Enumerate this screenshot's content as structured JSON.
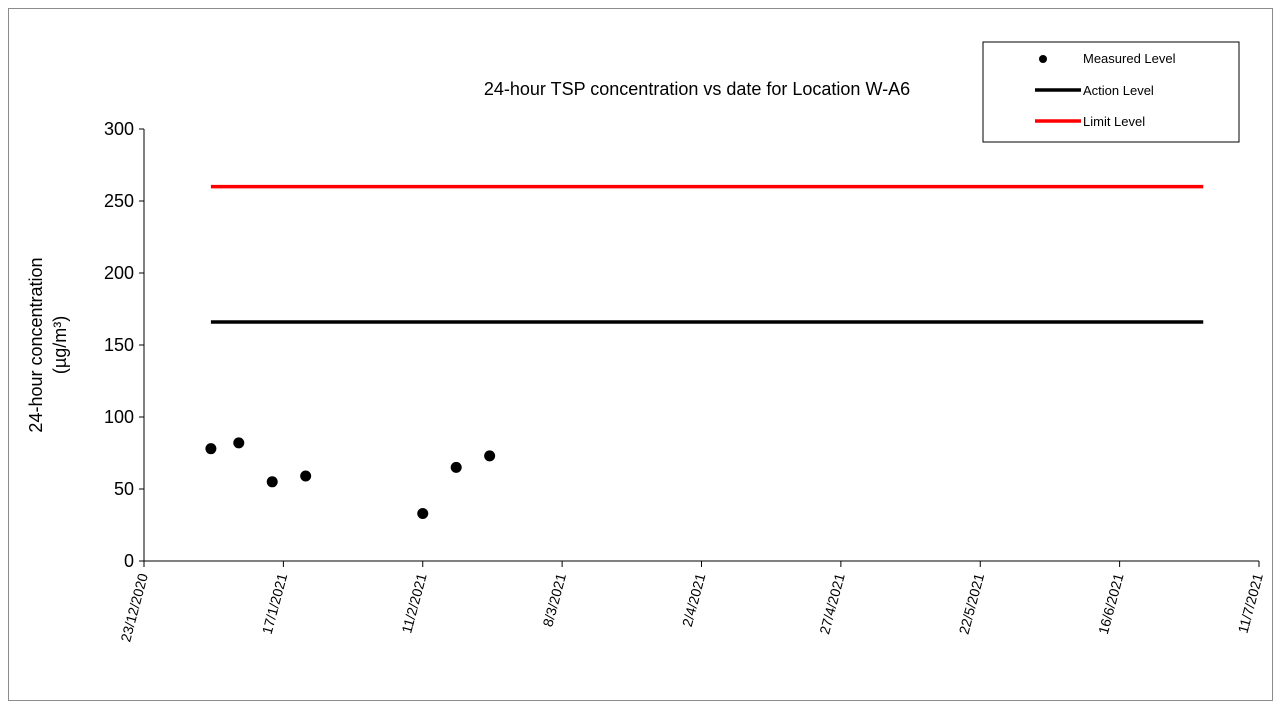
{
  "chart_data": {
    "type": "scatter",
    "title": "24-hour TSP concentration vs date for Location W-A6",
    "ylabel_line1": "24-hour concentration",
    "ylabel_line2": "(µg/m³)",
    "xlabel": "",
    "ylim": [
      0,
      300
    ],
    "y_ticks": [
      0,
      50,
      100,
      150,
      200,
      250,
      300
    ],
    "xlim": [
      "2020-12-23",
      "2021-07-11"
    ],
    "x_ticks": [
      {
        "date": "2020-12-23",
        "label": "23/12/2020"
      },
      {
        "date": "2021-01-17",
        "label": "17/1/2021"
      },
      {
        "date": "2021-02-11",
        "label": "11/2/2021"
      },
      {
        "date": "2021-03-08",
        "label": "8/3/2021"
      },
      {
        "date": "2021-04-02",
        "label": "2/4/2021"
      },
      {
        "date": "2021-04-27",
        "label": "27/4/2021"
      },
      {
        "date": "2021-05-22",
        "label": "22/5/2021"
      },
      {
        "date": "2021-06-16",
        "label": "16/6/2021"
      },
      {
        "date": "2021-07-11",
        "label": "11/7/2021"
      }
    ],
    "grid": false,
    "legend_position": "top-right",
    "series": [
      {
        "name": "Measured Level",
        "kind": "markers",
        "color": "#000000",
        "points": [
          {
            "x": "2021-01-04",
            "y": 78
          },
          {
            "x": "2021-01-09",
            "y": 82
          },
          {
            "x": "2021-01-15",
            "y": 55
          },
          {
            "x": "2021-01-21",
            "y": 59
          },
          {
            "x": "2021-02-11",
            "y": 33
          },
          {
            "x": "2021-02-17",
            "y": 65
          },
          {
            "x": "2021-02-23",
            "y": 73
          }
        ]
      },
      {
        "name": "Action Level",
        "kind": "line",
        "color": "#000000",
        "points": [
          {
            "x": "2021-01-04",
            "y": 166
          },
          {
            "x": "2021-07-01",
            "y": 166
          }
        ]
      },
      {
        "name": "Limit Level",
        "kind": "line",
        "color": "#ff0000",
        "points": [
          {
            "x": "2021-01-04",
            "y": 260
          },
          {
            "x": "2021-07-01",
            "y": 260
          }
        ]
      }
    ]
  }
}
